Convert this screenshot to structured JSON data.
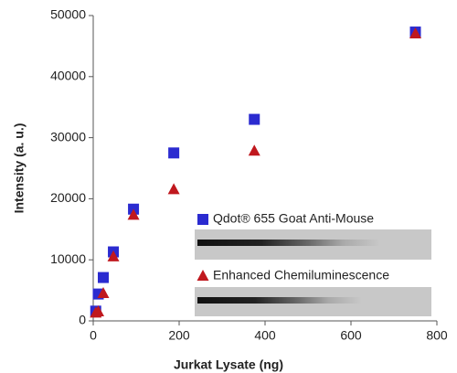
{
  "chart_data": {
    "type": "scatter",
    "x_label": "Jurkat Lysate (ng)",
    "y_label": "Intensity (a. u.)",
    "xlim": [
      0,
      800
    ],
    "xticks": [
      0,
      200,
      400,
      600,
      800
    ],
    "ylim": [
      0,
      50000
    ],
    "yticks": [
      0,
      10000,
      20000,
      30000,
      40000,
      50000
    ],
    "series": [
      {
        "name": "Qdot® 655 Goat Anti-Mouse",
        "color": "#2b2bd0",
        "marker": "square",
        "x": [
          5.86,
          11.7,
          23.4,
          46.9,
          93.75,
          187.5,
          375,
          750
        ],
        "values": [
          1600,
          4400,
          7100,
          11300,
          18300,
          27500,
          33000,
          47300
        ]
      },
      {
        "name": "Enhanced Chemiluminescence",
        "color": "#c0181e",
        "marker": "triangle",
        "x": [
          5.86,
          11.7,
          23.4,
          46.9,
          93.75,
          187.5,
          375,
          750
        ],
        "values": [
          1300,
          1500,
          4500,
          10500,
          17300,
          21500,
          27800,
          47000
        ]
      }
    ]
  }
}
